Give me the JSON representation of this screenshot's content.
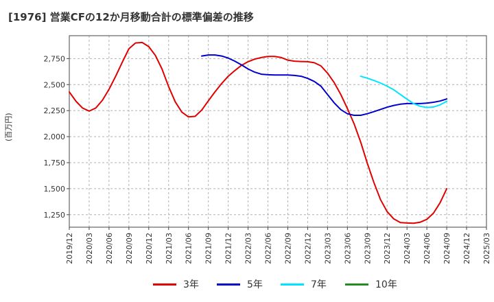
{
  "chart_data": {
    "type": "line",
    "title": "[1976]  営業CFの12か月移動合計の標準偏差の推移",
    "ylabel": "(百万円)",
    "xlabel": "",
    "x_ticks": [
      "2019/12",
      "2020/03",
      "2020/06",
      "2020/09",
      "2020/12",
      "2021/03",
      "2021/06",
      "2021/09",
      "2021/12",
      "2022/03",
      "2022/06",
      "2022/09",
      "2022/12",
      "2023/03",
      "2023/06",
      "2023/09",
      "2023/12",
      "2024/03",
      "2024/06",
      "2024/09",
      "2024/12",
      "2025/03"
    ],
    "y_ticks": [
      1250,
      1500,
      1750,
      2000,
      2250,
      2500,
      2750
    ],
    "y_tick_labels": [
      "1,250",
      "1,500",
      "1,750",
      "2,000",
      "2,250",
      "2,500",
      "2,750"
    ],
    "ylim": [
      1130,
      2970
    ],
    "xlim": [
      "2019/12",
      "2025/03"
    ],
    "grid": "dashed",
    "legend_position": "bottom",
    "series": [
      {
        "name": "3年",
        "color": "#e00000",
        "points": [
          [
            "2019/12",
            2430
          ],
          [
            "2020/01",
            2340
          ],
          [
            "2020/02",
            2275
          ],
          [
            "2020/03",
            2245
          ],
          [
            "2020/04",
            2275
          ],
          [
            "2020/05",
            2350
          ],
          [
            "2020/06",
            2455
          ],
          [
            "2020/07",
            2580
          ],
          [
            "2020/08",
            2715
          ],
          [
            "2020/09",
            2845
          ],
          [
            "2020/10",
            2900
          ],
          [
            "2020/11",
            2905
          ],
          [
            "2020/12",
            2865
          ],
          [
            "2020/01",
            null
          ],
          [
            "2021/01",
            2780
          ],
          [
            "2021/02",
            2650
          ],
          [
            "2021/03",
            2480
          ],
          [
            "2021/04",
            2335
          ],
          [
            "2021/05",
            2235
          ],
          [
            "2021/06",
            2190
          ],
          [
            "2021/07",
            2195
          ],
          [
            "2021/08",
            2255
          ],
          [
            "2021/09",
            2345
          ],
          [
            "2021/10",
            2430
          ],
          [
            "2021/11",
            2510
          ],
          [
            "2021/12",
            2580
          ],
          [
            "2022/01",
            2635
          ],
          [
            "2022/02",
            2685
          ],
          [
            "2022/03",
            2720
          ],
          [
            "2022/04",
            2745
          ],
          [
            "2022/05",
            2760
          ],
          [
            "2022/06",
            2770
          ],
          [
            "2022/07",
            2770
          ],
          [
            "2022/08",
            2760
          ],
          [
            "2022/09",
            2735
          ],
          [
            "2022/10",
            2725
          ],
          [
            "2022/11",
            2722
          ],
          [
            "2022/12",
            2720
          ],
          [
            "2023/01",
            2710
          ],
          [
            "2023/02",
            2680
          ],
          [
            "2023/03",
            2610
          ],
          [
            "2023/04",
            2520
          ],
          [
            "2023/05",
            2405
          ],
          [
            "2023/06",
            2270
          ],
          [
            "2023/07",
            2125
          ],
          [
            "2023/08",
            1950
          ],
          [
            "2023/09",
            1745
          ],
          [
            "2023/10",
            1560
          ],
          [
            "2023/11",
            1395
          ],
          [
            "2023/12",
            1280
          ],
          [
            "2024/01",
            1210
          ],
          [
            "2024/02",
            1175
          ],
          [
            "2024/03",
            1170
          ],
          [
            "2024/04",
            1168
          ],
          [
            "2024/05",
            1178
          ],
          [
            "2024/06",
            1205
          ],
          [
            "2024/07",
            1265
          ],
          [
            "2024/08",
            1365
          ],
          [
            "2024/09",
            1500
          ]
        ]
      },
      {
        "name": "5年",
        "color": "#0000cc",
        "points": [
          [
            "2021/08",
            2775
          ],
          [
            "2021/09",
            2785
          ],
          [
            "2021/10",
            2785
          ],
          [
            "2021/11",
            2775
          ],
          [
            "2021/12",
            2755
          ],
          [
            "2022/01",
            2725
          ],
          [
            "2022/02",
            2690
          ],
          [
            "2022/03",
            2650
          ],
          [
            "2022/04",
            2620
          ],
          [
            "2022/05",
            2600
          ],
          [
            "2022/06",
            2595
          ],
          [
            "2022/07",
            2593
          ],
          [
            "2022/08",
            2593
          ],
          [
            "2022/09",
            2593
          ],
          [
            "2022/10",
            2588
          ],
          [
            "2022/11",
            2580
          ],
          [
            "2022/12",
            2560
          ],
          [
            "2023/01",
            2530
          ],
          [
            "2023/02",
            2485
          ],
          [
            "2023/03",
            2405
          ],
          [
            "2023/04",
            2325
          ],
          [
            "2023/05",
            2260
          ],
          [
            "2023/06",
            2220
          ],
          [
            "2023/07",
            2205
          ],
          [
            "2023/08",
            2205
          ],
          [
            "2023/09",
            2220
          ],
          [
            "2023/10",
            2240
          ],
          [
            "2023/11",
            2262
          ],
          [
            "2023/12",
            2283
          ],
          [
            "2024/01",
            2300
          ],
          [
            "2024/02",
            2312
          ],
          [
            "2024/03",
            2318
          ],
          [
            "2024/04",
            2318
          ],
          [
            "2024/05",
            2318
          ],
          [
            "2024/06",
            2322
          ],
          [
            "2024/07",
            2330
          ],
          [
            "2024/08",
            2342
          ],
          [
            "2024/09",
            2362
          ]
        ]
      },
      {
        "name": "7年",
        "color": "#00e5ff",
        "points": [
          [
            "2023/08",
            2580
          ],
          [
            "2023/09",
            2562
          ],
          [
            "2023/10",
            2540
          ],
          [
            "2023/11",
            2515
          ],
          [
            "2023/12",
            2485
          ],
          [
            "2024/01",
            2450
          ],
          [
            "2024/02",
            2405
          ],
          [
            "2024/03",
            2360
          ],
          [
            "2024/04",
            2318
          ],
          [
            "2024/05",
            2292
          ],
          [
            "2024/06",
            2280
          ],
          [
            "2024/07",
            2285
          ],
          [
            "2024/08",
            2305
          ],
          [
            "2024/09",
            2340
          ]
        ]
      },
      {
        "name": "10年",
        "color": "#228b22",
        "points": []
      }
    ]
  }
}
